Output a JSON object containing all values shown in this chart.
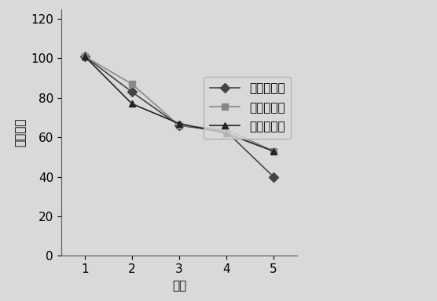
{
  "series": [
    {
      "label": "无纺布袋小",
      "x": [
        1,
        2,
        3,
        4,
        5
      ],
      "y": [
        101,
        83,
        66,
        63,
        40
      ],
      "color": "#444444",
      "marker": "D",
      "markersize": 6,
      "linestyle": "-",
      "linewidth": 1.2
    },
    {
      "label": "无纺布袋中",
      "x": [
        1,
        2,
        3,
        4,
        5
      ],
      "y": [
        101,
        87,
        66,
        64,
        53
      ],
      "color": "#888888",
      "marker": "s",
      "markersize": 6,
      "linestyle": "-",
      "linewidth": 1.2
    },
    {
      "label": "无纺布袋大",
      "x": [
        1,
        2,
        3,
        4,
        5
      ],
      "y": [
        101,
        77,
        67,
        62,
        53
      ],
      "color": "#222222",
      "marker": "^",
      "markersize": 6,
      "linestyle": "-",
      "linewidth": 1.2
    }
  ],
  "xlabel": "天数",
  "ylabel": "水分含量",
  "xlim": [
    0.5,
    5.5
  ],
  "ylim": [
    0,
    125
  ],
  "yticks": [
    0,
    20,
    40,
    60,
    80,
    100,
    120
  ],
  "xticks": [
    1,
    2,
    3,
    4,
    5
  ],
  "fontsize": 11,
  "tick_fontsize": 11,
  "label_fontsize": 11,
  "bg_color": "#d9d9d9"
}
